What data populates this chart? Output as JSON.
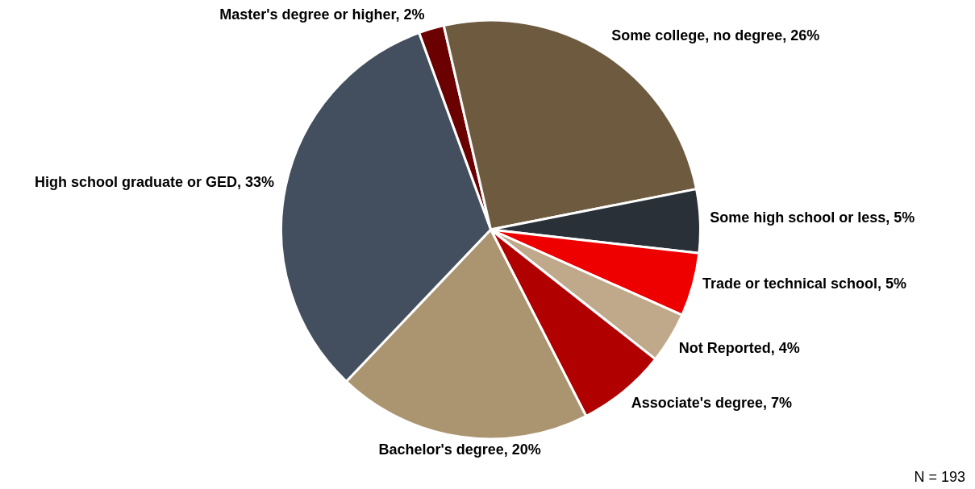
{
  "chart_data": {
    "type": "pie",
    "categories": [
      "Master's degree or higher",
      "Some college, no degree",
      "Some high school or less",
      "Trade or technical school",
      "Not Reported",
      "Associate's degree",
      "Bachelor's degree",
      "High school graduate or GED"
    ],
    "values": [
      2,
      26,
      5,
      5,
      4,
      7,
      20,
      33
    ],
    "value_labels": [
      "2%",
      "26%",
      "5%",
      "5%",
      "4%",
      "7%",
      "20%",
      "33%"
    ],
    "colors": [
      "#6b0000",
      "#6e5b3f",
      "#2a3038",
      "#ee0000",
      "#bfa98a",
      "#b00000",
      "#ab9470",
      "#434f5e"
    ],
    "annotations": [
      "N = 193"
    ]
  }
}
